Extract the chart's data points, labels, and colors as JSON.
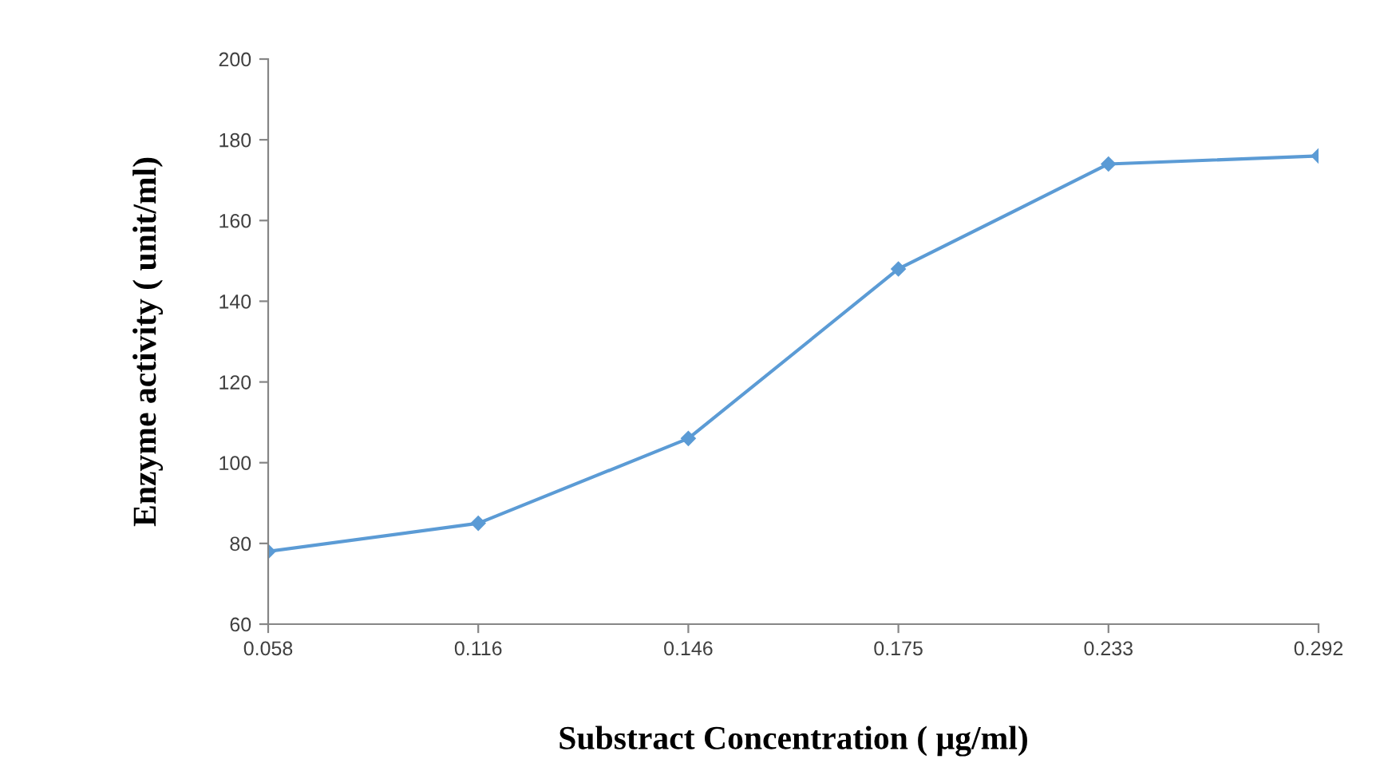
{
  "chart_data": {
    "type": "line",
    "xlabel": "Substract Concentration ( μg/ml)",
    "ylabel": "Enzyme activity ( unit/ml)",
    "categories": [
      "0.058",
      "0.116",
      "0.146",
      "0.175",
      "0.233",
      "0.292"
    ],
    "series": [
      {
        "color": "#5b9bd5",
        "values": [
          78,
          85,
          106,
          148,
          174,
          176
        ]
      }
    ],
    "ylim": [
      60,
      200
    ],
    "yticks": [
      60,
      80,
      100,
      120,
      140,
      160,
      180,
      200
    ],
    "marker": "diamond",
    "line_style": "solid",
    "grid": false,
    "legend": false
  }
}
